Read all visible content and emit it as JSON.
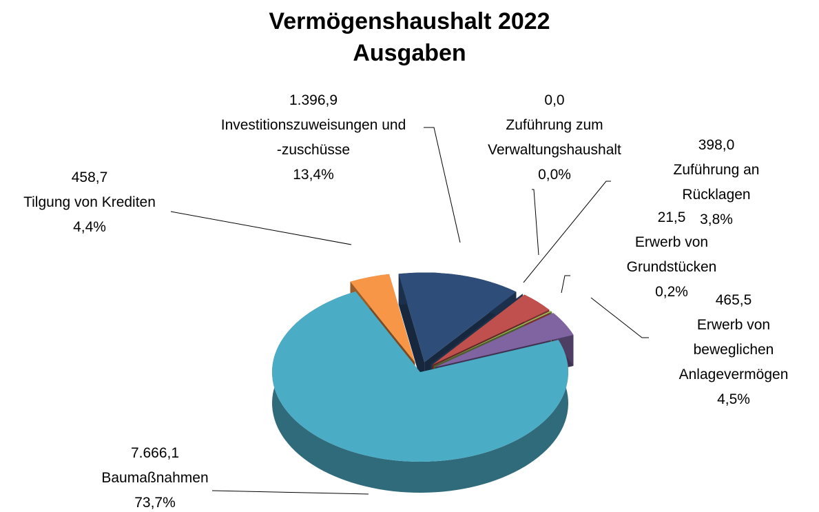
{
  "chart_data": {
    "type": "pie3d",
    "title": "Vermögenshaushalt 2022",
    "subtitle": "Ausgaben",
    "categories": [
      "Investitionszuweisungen und\n-zuschüsse",
      "Zuführung zum\nVerwaltungshaushalt",
      "Zuführung an Rücklagen",
      "Erwerb von\nGrundstücken",
      "Erwerb von\nbeweglichen\nAnlagevermögen",
      "Baumaßnahmen",
      "Tilgung von Krediten"
    ],
    "values": [
      1396.9,
      0.0,
      398.0,
      21.5,
      465.5,
      7666.1,
      458.7
    ],
    "value_labels": [
      "1.396,9",
      "0,0",
      "398,0",
      "21,5",
      "465,5",
      "7.666,1",
      "458,7"
    ],
    "percentages": [
      13.4,
      0.0,
      3.8,
      0.2,
      4.5,
      73.7,
      4.4
    ],
    "percentage_labels": [
      "13,4%",
      "0,0%",
      "3,8%",
      "0,2%",
      "4,5%",
      "73,7%",
      "4,4%"
    ],
    "colors": [
      "#2e4d79",
      "#3d6897",
      "#c0504d",
      "#9bbb59",
      "#8064a2",
      "#4bacc6",
      "#f79646"
    ]
  }
}
